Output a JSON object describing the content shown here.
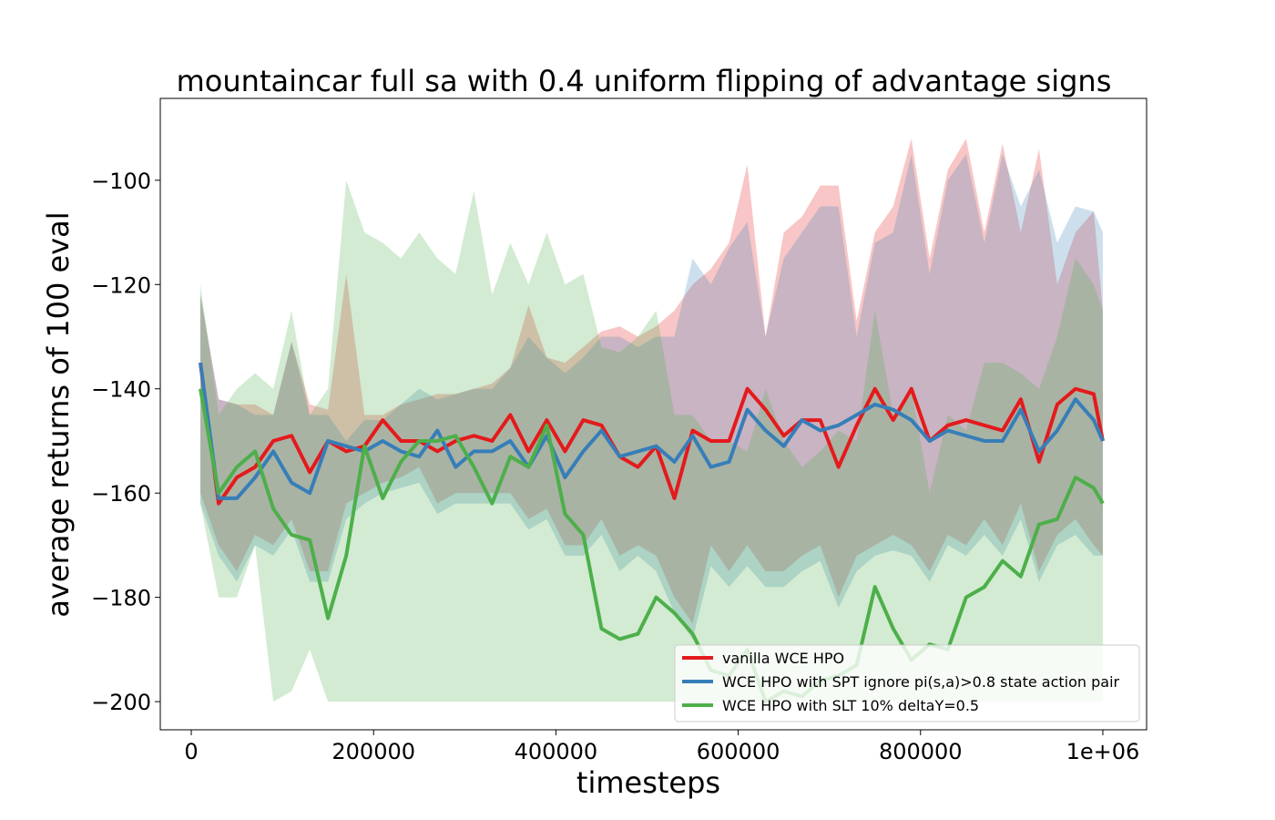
{
  "chart_data": {
    "type": "line",
    "title": "mountaincar full sa with 0.4 uniform flipping of advantage signs",
    "xlabel": "timesteps",
    "ylabel": "average returns of 100 eval",
    "x": [
      10000,
      30000,
      50000,
      70000,
      90000,
      110000,
      130000,
      150000,
      170000,
      190000,
      210000,
      230000,
      250000,
      270000,
      290000,
      310000,
      330000,
      350000,
      370000,
      390000,
      410000,
      430000,
      450000,
      470000,
      490000,
      510000,
      530000,
      550000,
      570000,
      590000,
      610000,
      630000,
      650000,
      670000,
      690000,
      710000,
      730000,
      750000,
      770000,
      790000,
      810000,
      830000,
      850000,
      870000,
      890000,
      910000,
      930000,
      950000,
      970000,
      990000,
      1000000
    ],
    "xlim": [
      -34000,
      1048000
    ],
    "xticks": [
      0,
      200000,
      400000,
      600000,
      800000,
      {
        "value": 1000000,
        "label": "1e+06"
      }
    ],
    "ylim": [
      -205.4,
      -84.3
    ],
    "yticks": [
      {
        "value": -100,
        "label": "−100"
      },
      {
        "value": -120,
        "label": "−120"
      },
      {
        "value": -140,
        "label": "−140"
      },
      {
        "value": -160,
        "label": "−160"
      },
      {
        "value": -180,
        "label": "−180"
      },
      {
        "value": -200,
        "label": "−200"
      }
    ],
    "legend": "lower right",
    "series": [
      {
        "name": "vanilla WCE HPO",
        "color": "#e41a1c",
        "values": [
          -135,
          -162,
          -157,
          -155,
          -150,
          -149,
          -156,
          -150,
          -152,
          -151,
          -146,
          -150,
          -150,
          -152,
          -150,
          -149,
          -150,
          -145,
          -152,
          -146,
          -152,
          -146,
          -147,
          -153,
          -155,
          -151,
          -161,
          -148,
          -150,
          -150,
          -140,
          -144,
          -149,
          -146,
          -146,
          -155,
          -147,
          -140,
          -146,
          -140,
          -150,
          -147,
          -146,
          -147,
          -148,
          -142,
          -154,
          -143,
          -140,
          -141,
          -150
        ],
        "upper": [
          -122,
          -142,
          -143,
          -143,
          -145,
          -131,
          -143,
          -144,
          -118,
          -145,
          -145,
          -143,
          -142,
          -141,
          -141,
          -140,
          -139,
          -136,
          -124,
          -134,
          -135,
          -132,
          -129,
          -128,
          -130,
          -128,
          -125,
          -120,
          -117,
          -112,
          -97,
          -130,
          -110,
          -107,
          -101,
          -101,
          -127,
          -110,
          -105,
          -92,
          -115,
          -98,
          -92,
          -110,
          -93,
          -110,
          -94,
          -120,
          -110,
          -106,
          -125
        ],
        "lower": [
          -160,
          -170,
          -175,
          -168,
          -170,
          -165,
          -175,
          -175,
          -162,
          -160,
          -158,
          -157,
          -155,
          -162,
          -160,
          -160,
          -160,
          -160,
          -165,
          -163,
          -170,
          -170,
          -165,
          -172,
          -170,
          -172,
          -180,
          -185,
          -170,
          -175,
          -170,
          -175,
          -175,
          -172,
          -170,
          -180,
          -172,
          -170,
          -168,
          -170,
          -175,
          -168,
          -170,
          -165,
          -170,
          -162,
          -175,
          -168,
          -165,
          -170,
          -172
        ]
      },
      {
        "name": "WCE HPO with SPT ignore pi(s,a)>0.8 state action pair",
        "color": "#377eb8",
        "values": [
          -135,
          -161,
          -161,
          -157,
          -152,
          -158,
          -160,
          -150,
          -151,
          -152,
          -150,
          -152,
          -153,
          -148,
          -155,
          -152,
          -152,
          -150,
          -155,
          -149,
          -157,
          -152,
          -148,
          -153,
          -152,
          -151,
          -154,
          -149,
          -155,
          -154,
          -144,
          -148,
          -151,
          -146,
          -148,
          -147,
          -145,
          -143,
          -144,
          -146,
          -150,
          -148,
          -149,
          -150,
          -150,
          -144,
          -152,
          -148,
          -142,
          -146,
          -150
        ],
        "upper": [
          -122,
          -142,
          -143,
          -145,
          -145,
          -131,
          -145,
          -145,
          -150,
          -146,
          -146,
          -143,
          -140,
          -142,
          -141,
          -140,
          -140,
          -136,
          -130,
          -134,
          -137,
          -134,
          -130,
          -130,
          -132,
          -130,
          -130,
          -115,
          -120,
          -113,
          -108,
          -130,
          -115,
          -110,
          -105,
          -105,
          -130,
          -112,
          -110,
          -95,
          -118,
          -100,
          -95,
          -112,
          -95,
          -105,
          -98,
          -112,
          -105,
          -106,
          -110
        ],
        "lower": [
          -162,
          -172,
          -177,
          -170,
          -172,
          -167,
          -177,
          -177,
          -165,
          -162,
          -160,
          -159,
          -158,
          -164,
          -162,
          -162,
          -162,
          -162,
          -167,
          -165,
          -172,
          -172,
          -168,
          -175,
          -172,
          -175,
          -183,
          -188,
          -174,
          -178,
          -174,
          -178,
          -178,
          -175,
          -173,
          -182,
          -175,
          -172,
          -171,
          -172,
          -177,
          -170,
          -172,
          -168,
          -172,
          -165,
          -177,
          -170,
          -168,
          -172,
          -172
        ]
      },
      {
        "name": "WCE HPO with SLT 10% deltaY=0.5",
        "color": "#4daf4a",
        "values": [
          -140,
          -160,
          -155,
          -152,
          -163,
          -168,
          -169,
          -184,
          -172,
          -151,
          -161,
          -154,
          -150,
          -150,
          -149,
          -155,
          -162,
          -153,
          -155,
          -147,
          -164,
          -168,
          -186,
          -188,
          -187,
          -180,
          -183,
          -187,
          -194,
          -195,
          -190,
          -200,
          -198,
          -199,
          -196,
          -195,
          -193,
          -178,
          -186,
          -192,
          -189,
          -190,
          -180,
          -178,
          -173,
          -176,
          -166,
          -165,
          -157,
          -159,
          -162
        ],
        "upper": [
          -120,
          -145,
          -140,
          -137,
          -140,
          -125,
          -145,
          -140,
          -100,
          -110,
          -112,
          -115,
          -110,
          -115,
          -118,
          -102,
          -122,
          -112,
          -120,
          -110,
          -120,
          -118,
          -132,
          -133,
          -130,
          -125,
          -145,
          -145,
          -150,
          -150,
          -152,
          -140,
          -150,
          -155,
          -152,
          -148,
          -150,
          -125,
          -145,
          -140,
          -160,
          -145,
          -148,
          -135,
          -135,
          -137,
          -140,
          -130,
          -115,
          -120,
          -125
        ],
        "lower": [
          -162,
          -180,
          -180,
          -170,
          -200,
          -198,
          -190,
          -200,
          -200,
          -200,
          -200,
          -200,
          -200,
          -200,
          -200,
          -200,
          -200,
          -200,
          -200,
          -200,
          -200,
          -200,
          -200,
          -200,
          -200,
          -200,
          -200,
          -200,
          -200,
          -200,
          -200,
          -200,
          -200,
          -200,
          -200,
          -200,
          -200,
          -200,
          -200,
          -200,
          -200,
          -200,
          -200,
          -200,
          -200,
          -200,
          -200,
          -200,
          -200,
          -200,
          -200
        ]
      }
    ]
  }
}
